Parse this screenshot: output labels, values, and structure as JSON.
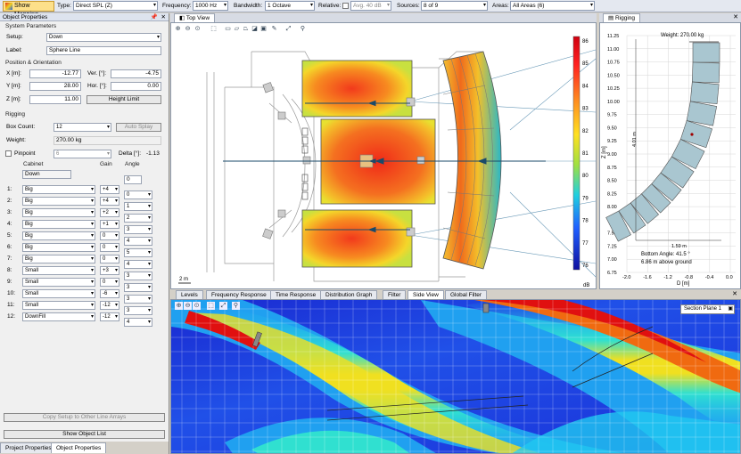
{
  "toolbar": {
    "show_mapping": "Show Mapping",
    "type_label": "Type:",
    "type_value": "Direct SPL (Z)",
    "freq_label": "Frequency:",
    "freq_value": "1000 Hz",
    "bw_label": "Bandwidth:",
    "bw_value": "1 Octave",
    "relative_label": "Relative:",
    "relative_value": "Avg. 40 dB",
    "sources_label": "Sources:",
    "sources_value": "8 of 9",
    "areas_label": "Areas:",
    "areas_value": "All Areas (6)"
  },
  "left": {
    "title": "Object Properties",
    "system_parameters": "System Parameters",
    "setup_label": "Setup:",
    "setup_value": "Down",
    "label_label": "Label:",
    "label_value": "Sphere Line",
    "position_header": "Position & Orientation",
    "x_label": "X [m]:",
    "x_value": "-12.77",
    "y_label": "Y [m]:",
    "y_value": "28.00",
    "z_label": "Z [m]:",
    "z_value": "11.00",
    "ver_label": "Ver. [°]:",
    "ver_value": "-4.75",
    "hor_label": "Hor. [°]:",
    "hor_value": "0.00",
    "height_limit": "Height Limit",
    "rigging_header": "Rigging",
    "box_count_label": "Box Count:",
    "box_count_value": "12",
    "auto_splay": "Auto Splay",
    "weight_label": "Weight:",
    "weight_value": "270.00 kg",
    "pinpoint_label": "Pinpoint",
    "pinpoint_value": "6",
    "delta_label": "Delta [°]:",
    "delta_value": "-1.13",
    "cabinet_header": "Cabinet",
    "gain_header": "Gain",
    "angle_header": "Angle",
    "top_cabinet": "Down",
    "top_angle": "0",
    "rows": [
      {
        "num": "1:",
        "cabinet": "Big",
        "gain": "+4",
        "angle": "0"
      },
      {
        "num": "2:",
        "cabinet": "Big",
        "gain": "+4",
        "angle": "1"
      },
      {
        "num": "3:",
        "cabinet": "Big",
        "gain": "+2",
        "angle": "2"
      },
      {
        "num": "4:",
        "cabinet": "Big",
        "gain": "+1",
        "angle": "3"
      },
      {
        "num": "5:",
        "cabinet": "Big",
        "gain": "0",
        "angle": "4"
      },
      {
        "num": "6:",
        "cabinet": "Big",
        "gain": "0",
        "angle": "5"
      },
      {
        "num": "7:",
        "cabinet": "Big",
        "gain": "0",
        "angle": "4"
      },
      {
        "num": "8:",
        "cabinet": "Small",
        "gain": "+3",
        "angle": "3"
      },
      {
        "num": "9:",
        "cabinet": "Small",
        "gain": "0",
        "angle": "3"
      },
      {
        "num": "10:",
        "cabinet": "Small",
        "gain": "-6",
        "angle": "3"
      },
      {
        "num": "11:",
        "cabinet": "Small",
        "gain": "-12",
        "angle": "3"
      },
      {
        "num": "12:",
        "cabinet": "DownFill",
        "gain": "-12",
        "angle": "4"
      }
    ],
    "copy_setup": "Copy Setup to Other Line Arrays",
    "show_object_list": "Show Object List",
    "bottom_tabs": [
      "Project Properties",
      "Object Properties"
    ]
  },
  "top_view": {
    "tab": "Top View",
    "scale_text": "2 m",
    "colorbar_unit": "dB",
    "colorbar_ticks": [
      "86",
      "85",
      "84",
      "83",
      "82",
      "81",
      "80",
      "79",
      "78",
      "77",
      "76"
    ]
  },
  "rigging": {
    "tab": "Rigging",
    "weight": "Weight: 270.00 kg",
    "y_axis_label": "Z [m]",
    "x_axis_label": "D [m]",
    "y_ticks": [
      "11.25",
      "11.00",
      "10.75",
      "10.50",
      "10.25",
      "10.00",
      "9.75",
      "9.50",
      "9.25",
      "9.00",
      "8.75",
      "8.50",
      "8.25",
      "8.00",
      "7.75",
      "7.50",
      "7.25",
      "7.00",
      "6.75"
    ],
    "x_ticks": [
      "-2.0",
      "-1.6",
      "-1.2",
      "-0.8",
      "-0.4",
      "0.0"
    ],
    "dim_vertical": "4.01 m",
    "dim_horizontal": "1.59 m",
    "bottom_angle": "Bottom Angle: 41.5 °",
    "above_ground": "6.86 m above ground"
  },
  "bottom": {
    "tabs": [
      "Levels",
      "Frequency Response",
      "Time Response",
      "Distribution Graph",
      "Filter",
      "Side View",
      "Global Filter"
    ],
    "active_tab": "Side View",
    "section_plane": "Section Plane 1"
  },
  "colors": {
    "toolbar_bg": "#e4e8f0",
    "highlight_btn": "#fde08a",
    "cabinet_fill": "#a9c6d0",
    "map_red": "#e02020",
    "map_blue": "#1010c0"
  }
}
